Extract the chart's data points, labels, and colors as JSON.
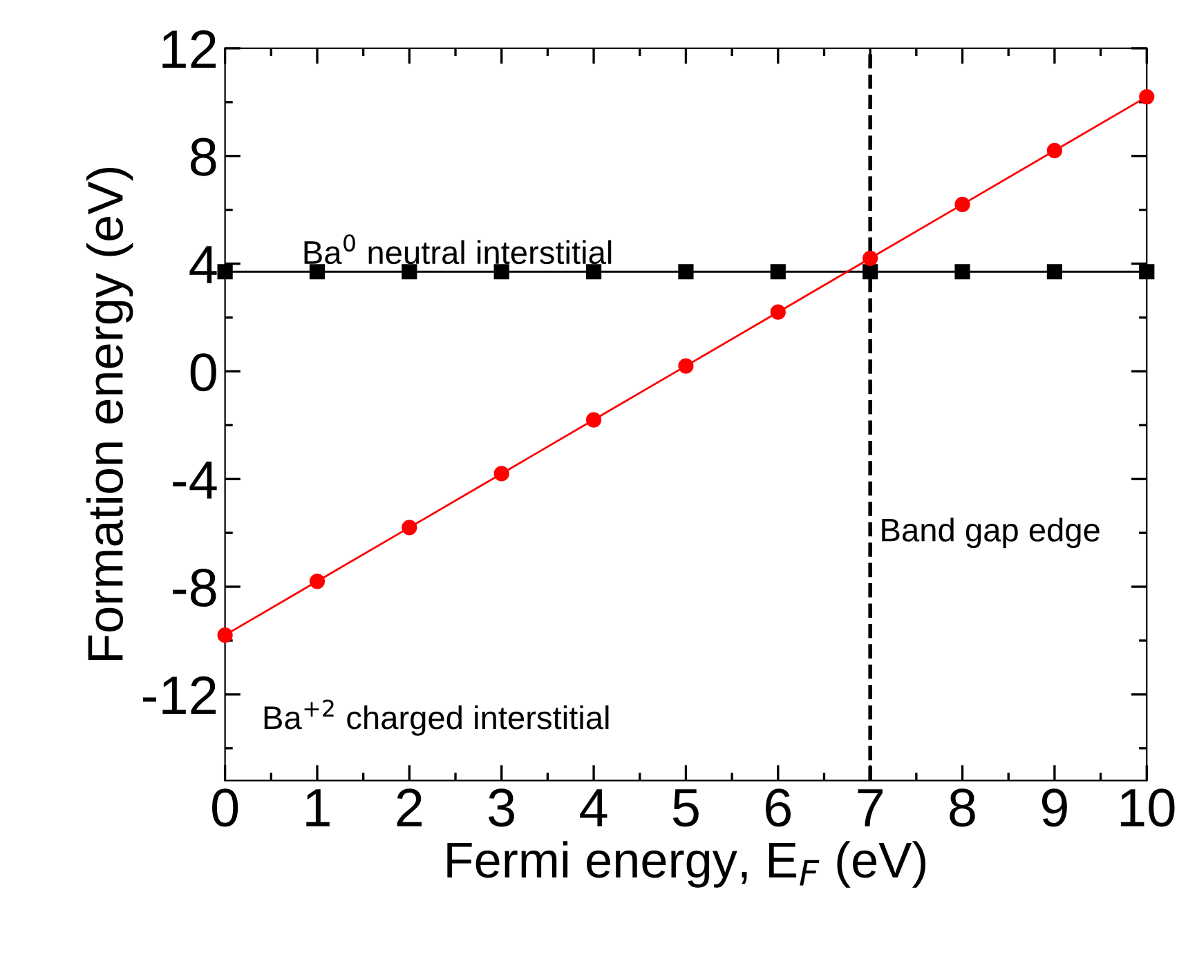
{
  "chart_data": {
    "type": "line",
    "xlabel": "Fermi energy, E$_{F}$ (eV)",
    "ylabel": "Formation energy (eV)",
    "x": [
      0,
      1,
      2,
      3,
      4,
      5,
      6,
      7,
      8,
      9,
      10
    ],
    "series": [
      {
        "color": "#000000",
        "marker": "square",
        "values": [
          3.7,
          3.7,
          3.7,
          3.7,
          3.7,
          3.7,
          3.7,
          3.7,
          3.7,
          3.7,
          3.7
        ]
      },
      {
        "color": "#ff0000",
        "marker": "circle",
        "values": [
          -9.8,
          -7.8,
          -5.8,
          -3.8,
          -1.8,
          0.2,
          2.2,
          4.2,
          6.2,
          8.2,
          10.2
        ]
      }
    ],
    "xlim": [
      0,
      10
    ],
    "xticks": [
      0,
      1,
      2,
      3,
      4,
      5,
      6,
      7,
      8,
      9,
      10
    ],
    "ylim": [
      -15.2,
      12
    ],
    "yticks": [
      -12,
      -8,
      -4,
      0,
      4,
      8,
      12
    ],
    "ref_lines": [
      {
        "axis": "x",
        "value": 7,
        "label": "Band gap edge",
        "color": "#000000",
        "line_style": "dashed"
      }
    ],
    "annotations": [
      {
        "text": "Ba$^{0}$ neutral interstitial",
        "x": 1,
        "y": 3.7
      },
      "Ba$^{+2}$ charged interstitial"
    ],
    "grid": false,
    "legend": false
  }
}
